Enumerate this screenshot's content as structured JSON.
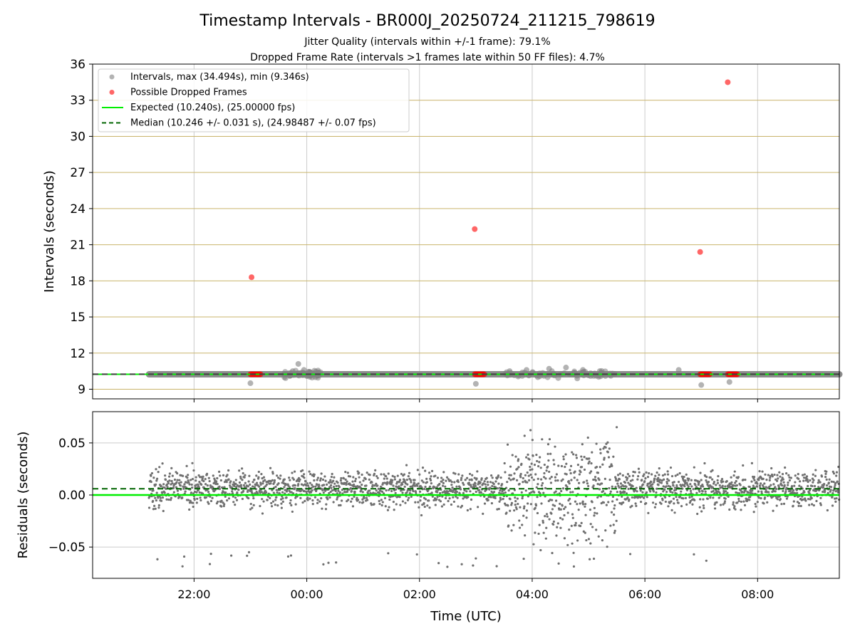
{
  "figure": {
    "title": "Timestamp Intervals - BR000J_20250724_211215_798619",
    "subtitle_line1": "Jitter Quality (intervals within +/-1 frame): 79.1%",
    "subtitle_line2": "Dropped Frame Rate (intervals >1 frames late within 50 FF files): 4.7%"
  },
  "chart_data": [
    {
      "type": "scatter",
      "ylabel": "Intervals (seconds)",
      "xlabel": "",
      "x_is_time_hours_relative_to_midnight": true,
      "xlim": [
        -3.8,
        9.45
      ],
      "ylim": [
        8.2,
        36
      ],
      "yticks": [
        9,
        12,
        15,
        18,
        21,
        24,
        27,
        30,
        33,
        36
      ],
      "ytick_labels": [
        "9",
        "12",
        "15",
        "18",
        "21",
        "24",
        "27",
        "30",
        "33",
        "36"
      ],
      "xticks": [
        -2,
        0,
        2,
        4,
        6,
        8
      ],
      "grid": "on",
      "horizontal_grid_color": "#c9b46b",
      "vertical_grid_color": "#cccccc",
      "legend_position": "top-left",
      "legend": [
        {
          "label": "Intervals, max (34.494s), min (9.346s)",
          "kind": "marker",
          "color": "#808080"
        },
        {
          "label": "Possible Dropped Frames",
          "kind": "marker",
          "color": "#ff0000"
        },
        {
          "label": "Expected (10.240s), (25.00000 fps)",
          "kind": "line",
          "color": "#00ee00"
        },
        {
          "label": "Median (10.246 +/- 0.031 s), (24.98487 +/- 0.07 fps)",
          "kind": "dashed",
          "color": "#006400"
        }
      ],
      "expected_line": 10.24,
      "median_line": 10.246,
      "series": [
        {
          "name": "Intervals, max (34.494s), min (9.346s)",
          "color": "#808080",
          "baseline_band": {
            "x_start": -2.8,
            "x_end": 9.45,
            "y": 10.24
          },
          "points": [
            {
              "x": -1.0,
              "y": 9.5
            },
            {
              "x": -0.25,
              "y": 10.5
            },
            {
              "x": -0.15,
              "y": 11.1
            },
            {
              "x": -0.05,
              "y": 10.6
            },
            {
              "x": 0.05,
              "y": 10.4
            },
            {
              "x": 0.15,
              "y": 10.0
            },
            {
              "x": -0.3,
              "y": 10.1
            },
            {
              "x": 3.0,
              "y": 9.45
            },
            {
              "x": 3.6,
              "y": 10.5
            },
            {
              "x": 3.9,
              "y": 10.6
            },
            {
              "x": 4.3,
              "y": 10.7
            },
            {
              "x": 4.6,
              "y": 10.8
            },
            {
              "x": 4.9,
              "y": 10.6
            },
            {
              "x": 5.2,
              "y": 10.5
            },
            {
              "x": 4.1,
              "y": 10.0
            },
            {
              "x": 4.8,
              "y": 9.9
            },
            {
              "x": 5.3,
              "y": 10.1
            },
            {
              "x": 6.6,
              "y": 10.6
            },
            {
              "x": 7.0,
              "y": 9.35
            },
            {
              "x": 7.5,
              "y": 9.6
            }
          ]
        },
        {
          "name": "Possible Dropped Frames",
          "color": "#ff0000",
          "points": [
            {
              "x": -0.98,
              "y": 18.3
            },
            {
              "x": 2.98,
              "y": 22.3
            },
            {
              "x": 6.98,
              "y": 20.4
            },
            {
              "x": 7.47,
              "y": 34.494
            }
          ],
          "clusters": [
            {
              "x_start": -1.0,
              "x_end": -0.82,
              "y": 10.24
            },
            {
              "x_start": 2.98,
              "x_end": 3.15,
              "y": 10.24
            },
            {
              "x_start": 6.98,
              "x_end": 7.15,
              "y": 10.24
            },
            {
              "x_start": 7.47,
              "x_end": 7.64,
              "y": 10.24
            }
          ]
        }
      ]
    },
    {
      "type": "scatter",
      "ylabel": "Residuals (seconds)",
      "xlabel": "Time (UTC)",
      "xlim": [
        -3.8,
        9.45
      ],
      "ylim": [
        -0.08,
        0.08
      ],
      "yticks": [
        -0.05,
        0,
        0.05
      ],
      "ytick_labels": [
        "−0.05",
        "0.00",
        "0.05"
      ],
      "xticks": [
        -2,
        0,
        2,
        4,
        6,
        8
      ],
      "xtick_labels": [
        "22:00",
        "00:00",
        "02:00",
        "04:00",
        "06:00",
        "08:00"
      ],
      "grid": "on",
      "expected_line": 0.0,
      "median_line": 0.006,
      "series": [
        {
          "color": "#707070",
          "x_range": [
            -2.8,
            9.45
          ],
          "typical_spread": 0.025,
          "wide_spread_region": {
            "x_start": 3.5,
            "x_end": 5.5,
            "spread": 0.08
          }
        }
      ]
    }
  ]
}
